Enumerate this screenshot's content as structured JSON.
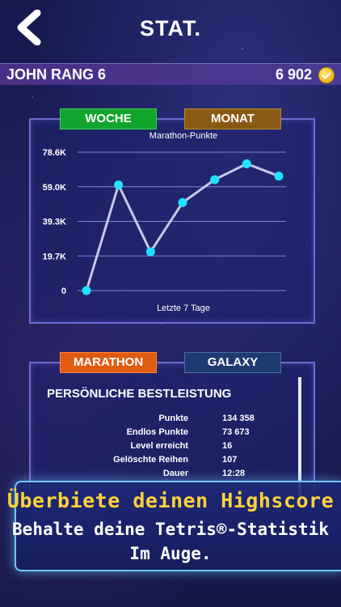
{
  "header": {
    "title": "STAT."
  },
  "user": {
    "name": "JOHN RANG 6",
    "coins": "6 902"
  },
  "chart_tabs": {
    "week": "WOCHE",
    "month": "MONAT"
  },
  "chart_data": {
    "type": "line",
    "title": "Marathon-Punkte",
    "xlabel": "Letzte 7 Tage",
    "ylabel": "",
    "y_ticks": [
      "78.6K",
      "59.0K",
      "39.3K",
      "19.7K",
      "0"
    ],
    "ylim": [
      0,
      78600
    ],
    "series": [
      {
        "values": [
          0,
          60000,
          22000,
          50000,
          63000,
          72000,
          65000
        ]
      }
    ],
    "grid": true,
    "colors": {
      "line": "#c7c7e8",
      "point": "#22e1ff"
    }
  },
  "stats_tabs": {
    "marathon": "MARATHON",
    "galaxy": "GALAXY"
  },
  "stats": {
    "heading": "PERSÖNLICHE BESTLEISTUNG",
    "rows": [
      {
        "label": "Punkte",
        "value": "134 358"
      },
      {
        "label": "Endlos Punkte",
        "value": "73 673"
      },
      {
        "label": "Level erreicht",
        "value": "16"
      },
      {
        "label": "Gelöschte Reihen",
        "value": "107"
      },
      {
        "label": "Dauer",
        "value": "12:28"
      }
    ]
  },
  "promo": {
    "headline": "Überbiete deinen Highscore",
    "line1": "Behalte deine Tetris®-Statistik",
    "line2": "Im Auge."
  },
  "colors": {
    "accent_yellow": "#ffd23a",
    "point_cyan": "#22e1ff",
    "week_green": "#12a52e",
    "marathon_orange": "#e05b12"
  }
}
